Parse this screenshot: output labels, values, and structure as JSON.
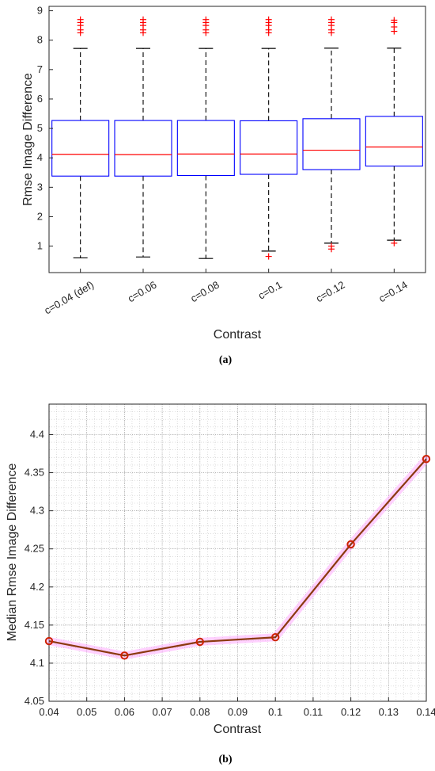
{
  "colors": {
    "box": "#0000ff",
    "median": "#ff0000",
    "outlier": "#ff0000",
    "whisker": "#000000",
    "line": "#8b3a0f",
    "marker": "#cc2200",
    "glow": "#ff99ff"
  },
  "chart_data": [
    {
      "type": "box",
      "caption": "(a)",
      "xlabel": "Contrast",
      "ylabel": "Rmse Image Difference",
      "ylim": [
        0.1,
        9.15
      ],
      "yticks": [
        1,
        2,
        3,
        4,
        5,
        6,
        7,
        8,
        9
      ],
      "grid": false,
      "categories": [
        "c=0.04 (def)",
        "c=0.06",
        "c=0.08",
        "c=0.1",
        "c=0.12",
        "c=0.14"
      ],
      "boxes": [
        {
          "whisker_low": 0.6,
          "q1": 3.38,
          "median": 4.12,
          "q3": 5.27,
          "whisker_high": 7.72,
          "outliers": [
            8.25,
            8.35,
            8.5,
            8.6,
            8.7
          ]
        },
        {
          "whisker_low": 0.63,
          "q1": 3.38,
          "median": 4.11,
          "q3": 5.27,
          "whisker_high": 7.72,
          "outliers": [
            8.25,
            8.35,
            8.5,
            8.6,
            8.7
          ]
        },
        {
          "whisker_low": 0.58,
          "q1": 3.4,
          "median": 4.13,
          "q3": 5.27,
          "whisker_high": 7.72,
          "outliers": [
            8.25,
            8.35,
            8.5,
            8.6,
            8.7
          ]
        },
        {
          "whisker_low": 0.83,
          "q1": 3.44,
          "median": 4.13,
          "q3": 5.26,
          "whisker_high": 7.72,
          "outliers": [
            0.65,
            8.25,
            8.35,
            8.5,
            8.6,
            8.7
          ]
        },
        {
          "whisker_low": 1.1,
          "q1": 3.6,
          "median": 4.26,
          "q3": 5.33,
          "whisker_high": 7.73,
          "outliers": [
            0.9,
            1.0,
            8.25,
            8.35,
            8.5,
            8.6,
            8.7
          ]
        },
        {
          "whisker_low": 1.2,
          "q1": 3.72,
          "median": 4.37,
          "q3": 5.41,
          "whisker_high": 7.73,
          "outliers": [
            1.1,
            8.3,
            8.45,
            8.6,
            8.68
          ]
        }
      ]
    },
    {
      "type": "line",
      "caption": "(b)",
      "xlabel": "Contrast",
      "ylabel": "Median Rmse Image Difference",
      "xlim": [
        0.04,
        0.14
      ],
      "ylim": [
        4.05,
        4.44
      ],
      "xticks": [
        0.04,
        0.05,
        0.06,
        0.07,
        0.08,
        0.09,
        0.1,
        0.11,
        0.12,
        0.13,
        0.14
      ],
      "xticklabels": [
        "0.04",
        "0.05",
        "0.06",
        "0.07",
        "0.08",
        "0.09",
        "0.1",
        "0.11",
        "0.12",
        "0.13",
        "0.14"
      ],
      "yticks": [
        4.05,
        4.1,
        4.15,
        4.2,
        4.25,
        4.3,
        4.35,
        4.4
      ],
      "yticklabels": [
        "4.05",
        "4.1",
        "4.15",
        "4.2",
        "4.25",
        "4.3",
        "4.35",
        "4.4"
      ],
      "grid": true,
      "series": [
        {
          "x": [
            0.04,
            0.06,
            0.08,
            0.1,
            0.12,
            0.14
          ],
          "y": [
            4.129,
            4.11,
            4.128,
            4.134,
            4.256,
            4.368
          ]
        }
      ]
    }
  ]
}
